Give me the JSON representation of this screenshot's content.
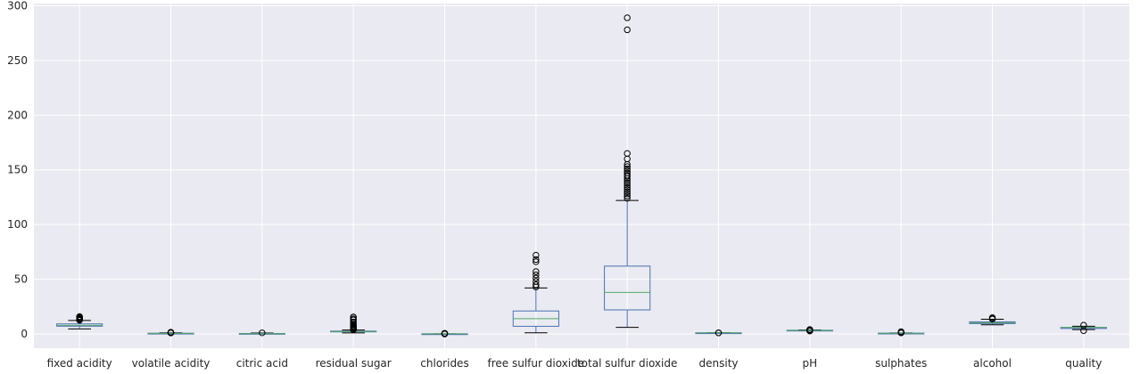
{
  "chart_data": {
    "type": "boxplot",
    "title": "",
    "xlabel": "",
    "ylabel": "",
    "ylim": [
      -13,
      302
    ],
    "yticks": [
      0,
      50,
      100,
      150,
      200,
      250,
      300
    ],
    "grid": true,
    "legend": "none",
    "colors": {
      "background": "#eaeaf2",
      "grid": "#ffffff",
      "box": "#4c72b0",
      "median": "#55a868",
      "whisker_cap": "#000000",
      "flier": "#000000"
    },
    "categories": [
      "fixed acidity",
      "volatile acidity",
      "citric acid",
      "residual sugar",
      "chlorides",
      "free sulfur dioxide",
      "total sulfur dioxide",
      "density",
      "pH",
      "sulphates",
      "alcohol",
      "quality"
    ],
    "boxes": [
      {
        "min": 4.6,
        "q1": 7.1,
        "median": 7.9,
        "q3": 9.2,
        "max": 12.3,
        "fliers": [
          12.5,
          12.8,
          13.0,
          13.3,
          13.7,
          14.0,
          14.3,
          15.0,
          15.6,
          15.9
        ]
      },
      {
        "min": 0.12,
        "q1": 0.39,
        "median": 0.52,
        "q3": 0.64,
        "max": 1.01,
        "fliers": [
          1.02,
          1.07,
          1.13,
          1.18,
          1.24,
          1.33,
          1.58
        ]
      },
      {
        "min": 0.0,
        "q1": 0.09,
        "median": 0.26,
        "q3": 0.42,
        "max": 0.79,
        "fliers": [
          1.0
        ]
      },
      {
        "min": 0.9,
        "q1": 1.9,
        "median": 2.2,
        "q3": 2.6,
        "max": 3.6,
        "fliers": [
          3.8,
          4.3,
          5.0,
          5.8,
          6.5,
          7.3,
          8.3,
          9.0,
          10.5,
          11.0,
          12.9,
          13.8,
          15.4,
          15.5
        ]
      },
      {
        "min": 0.04,
        "q1": 0.07,
        "median": 0.08,
        "q3": 0.09,
        "max": 0.12,
        "fliers": [
          0.01,
          0.15,
          0.2,
          0.3,
          0.4,
          0.5,
          0.61
        ]
      },
      {
        "min": 1,
        "q1": 7,
        "median": 14,
        "q3": 21,
        "max": 42,
        "fliers": [
          43,
          45,
          48,
          51,
          54,
          57,
          66,
          68,
          72
        ]
      },
      {
        "min": 6,
        "q1": 22,
        "median": 38,
        "q3": 62,
        "max": 122,
        "fliers": [
          124,
          126,
          128,
          130,
          132,
          134,
          136,
          138,
          140,
          142,
          144,
          145,
          147,
          149,
          151,
          153,
          155,
          160,
          165,
          278,
          289
        ]
      },
      {
        "min": 0.992,
        "q1": 0.9956,
        "median": 0.9968,
        "q3": 0.9978,
        "max": 1.001,
        "fliers": [
          0.99,
          1.003
        ]
      },
      {
        "min": 2.92,
        "q1": 3.21,
        "median": 3.31,
        "q3": 3.4,
        "max": 3.68,
        "fliers": [
          2.74,
          2.86,
          3.69,
          3.78,
          3.9,
          4.01
        ]
      },
      {
        "min": 0.33,
        "q1": 0.55,
        "median": 0.62,
        "q3": 0.73,
        "max": 0.98,
        "fliers": [
          1.0,
          1.1,
          1.2,
          1.36,
          1.59,
          1.95,
          2.0
        ]
      },
      {
        "min": 8.4,
        "q1": 9.5,
        "median": 10.2,
        "q3": 11.1,
        "max": 13.5,
        "fliers": [
          13.6,
          14.0,
          14.9
        ]
      },
      {
        "min": 4,
        "q1": 5,
        "median": 6,
        "q3": 6,
        "max": 7,
        "fliers": [
          3,
          8
        ]
      }
    ]
  }
}
